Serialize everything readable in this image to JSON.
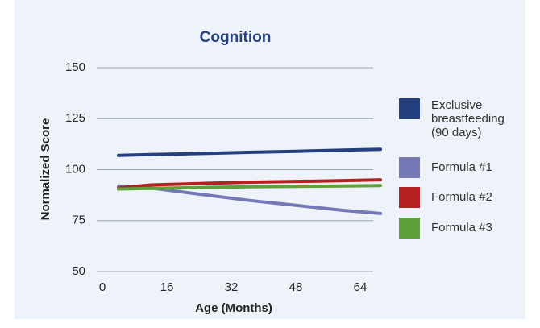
{
  "chart_data": {
    "type": "line",
    "title": "Cognition",
    "x_label": "Age (Months)",
    "y_label": "Normalized Score",
    "x": [
      4,
      12,
      24,
      36,
      48,
      60,
      69
    ],
    "series": [
      {
        "name": "Exclusive breastfeeding (90 days)",
        "color": "#253f7f",
        "values": [
          107,
          107.4,
          107.9,
          108.5,
          109,
          109.6,
          110
        ]
      },
      {
        "name": "Formula #1",
        "color": "#7479b5",
        "values": [
          92,
          91,
          88,
          85,
          82.5,
          80,
          78.5
        ]
      },
      {
        "name": "Formula #2",
        "color": "#b52020",
        "values": [
          91,
          92.5,
          93.2,
          93.8,
          94.2,
          94.6,
          95
        ]
      },
      {
        "name": "Formula #3",
        "color": "#5fa03a",
        "values": [
          90.5,
          90.8,
          91.2,
          91.6,
          91.8,
          92,
          92.2
        ]
      }
    ],
    "xlim": [
      0,
      69.2
    ],
    "xticks": [
      0,
      16,
      32,
      48,
      64
    ],
    "ylim": [
      50,
      150
    ],
    "yticks": [
      50,
      75,
      100,
      125,
      150
    ],
    "grid": true,
    "legend": "right"
  }
}
